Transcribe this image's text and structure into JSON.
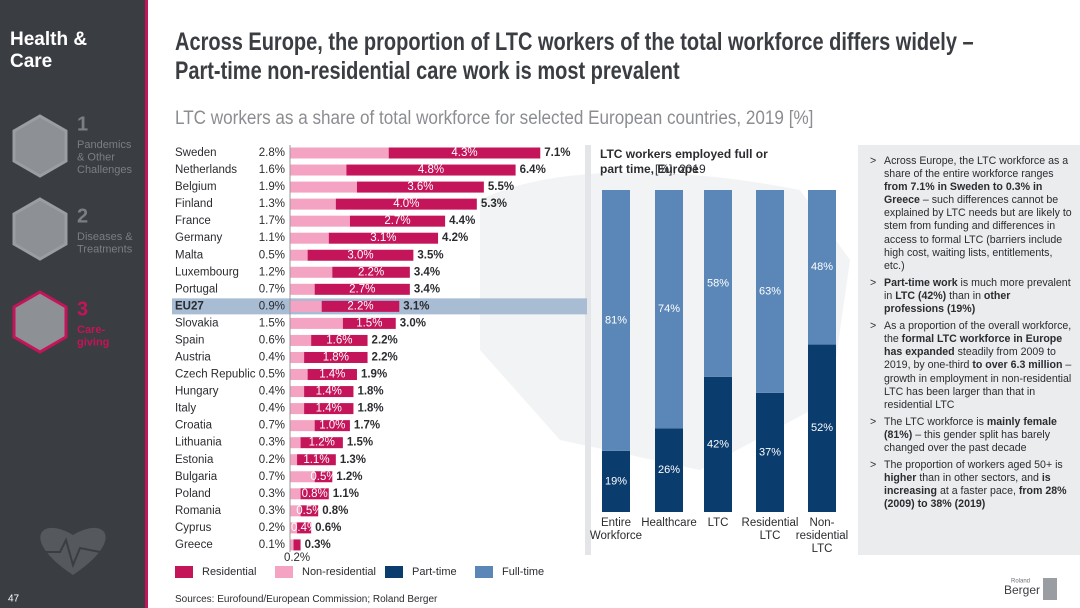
{
  "sidebar": {
    "title": "Health & Care",
    "items": [
      {
        "number": "1",
        "label": [
          "Pandemics",
          "& Other",
          "Challenges"
        ]
      },
      {
        "number": "2",
        "label": [
          "Diseases &",
          "Treatments"
        ]
      },
      {
        "number": "3",
        "label": [
          "Care-",
          "giving"
        ]
      }
    ],
    "page_number": "47"
  },
  "header": {
    "title": "Across Europe, the proportion of LTC workers of the total workforce differs widely – Part-time non-residential care work is most prevalent",
    "subtitle": "LTC workers as a share of total workforce for selected European countries, 2019 [%]"
  },
  "chart_data": [
    {
      "type": "hbar",
      "stacked": true,
      "highlight_category": "EU27",
      "categories": [
        "Sweden",
        "Netherlands",
        "Belgium",
        "Finland",
        "France",
        "Germany",
        "Malta",
        "Luxembourg",
        "Portugal",
        "EU27",
        "Slovakia",
        "Spain",
        "Austria",
        "Czech Republic",
        "Hungary",
        "Italy",
        "Croatia",
        "Lithuania",
        "Estonia",
        "Bulgaria",
        "Poland",
        "Romania",
        "Cyprus",
        "Greece"
      ],
      "series": [
        {
          "name": "Non-residential",
          "color": "#f4a3c2",
          "values": [
            2.8,
            1.6,
            1.9,
            1.3,
            1.7,
            1.1,
            0.5,
            1.2,
            0.7,
            0.9,
            1.5,
            0.6,
            0.4,
            0.5,
            0.4,
            0.4,
            0.7,
            0.3,
            0.2,
            0.7,
            0.3,
            0.3,
            0.2,
            0.1
          ],
          "value_labels": [
            "2.8%",
            "1.6%",
            "1.9%",
            "1.3%",
            "1.7%",
            "1.1%",
            "0.5%",
            "1.2%",
            "0.7%",
            "0.9%",
            "1.5%",
            "0.6%",
            "0.4%",
            "0.5%",
            "0.4%",
            "0.4%",
            "0.7%",
            "0.3%",
            "0.2%",
            "0.7%",
            "0.3%",
            "0.3%",
            "0.2%",
            "0.1%"
          ]
        },
        {
          "name": "Residential",
          "color": "#c4145a",
          "values": [
            4.3,
            4.8,
            3.6,
            4.0,
            2.7,
            3.1,
            3.0,
            2.2,
            2.7,
            2.2,
            1.5,
            1.6,
            1.8,
            1.4,
            1.4,
            1.4,
            1.0,
            1.2,
            1.1,
            0.5,
            0.8,
            0.5,
            0.4,
            0.2
          ],
          "value_labels": [
            "4.3%",
            "4.8%",
            "3.6%",
            "4.0%",
            "2.7%",
            "3.1%",
            "3.0%",
            "2.2%",
            "2.7%",
            "2.2%",
            "1.5%",
            "1.6%",
            "1.8%",
            "1.4%",
            "1.4%",
            "1.4%",
            "1.0%",
            "1.2%",
            "1.1%",
            "0.5%",
            "0.8%",
            "0.5%",
            "0.4%",
            "0.2%"
          ]
        }
      ],
      "totals": [
        7.1,
        6.4,
        5.5,
        5.3,
        4.4,
        4.2,
        3.5,
        3.4,
        3.4,
        3.1,
        3.0,
        2.2,
        2.2,
        1.9,
        1.8,
        1.8,
        1.7,
        1.5,
        1.3,
        1.2,
        1.1,
        0.8,
        0.6,
        0.3
      ],
      "total_labels": [
        "7.1%",
        "6.4%",
        "5.5%",
        "5.3%",
        "4.4%",
        "4.2%",
        "3.5%",
        "3.4%",
        "3.4%",
        "3.1%",
        "3.0%",
        "2.2%",
        "2.2%",
        "1.9%",
        "1.8%",
        "1.8%",
        "1.7%",
        "1.5%",
        "1.3%",
        "1.2%",
        "1.1%",
        "0.8%",
        "0.6%",
        "0.3%"
      ],
      "xlim": [
        0,
        8
      ]
    },
    {
      "type": "vbar",
      "stacked": true,
      "title": "LTC workers employed full or part time, Europe",
      "title_suffix": "[%], 2019",
      "categories": [
        [
          "Entire",
          "Workforce"
        ],
        [
          "Healthcare"
        ],
        [
          "LTC"
        ],
        [
          "Residential",
          "LTC"
        ],
        [
          "Non-",
          "residential",
          "LTC"
        ]
      ],
      "series": [
        {
          "name": "Part-time",
          "color": "#0b3c6e",
          "values": [
            19,
            26,
            42,
            37,
            52
          ],
          "value_labels": [
            "19%",
            "26%",
            "42%",
            "37%",
            "52%"
          ]
        },
        {
          "name": "Full-time",
          "color": "#5b87b8",
          "values": [
            81,
            74,
            58,
            63,
            48
          ],
          "value_labels": [
            "81%",
            "74%",
            "58%",
            "63%",
            "48%"
          ]
        }
      ],
      "ylim": [
        0,
        100
      ]
    }
  ],
  "panel": {
    "bullets": [
      [
        {
          "text": "Across Europe, the LTC workforce as a share of the entire workforce ranges ",
          "bold": false
        },
        {
          "text": "from 7.1% in Sweden to 0.3% in Greece",
          "bold": true
        },
        {
          "text": " – such differences cannot be explained by LTC needs but are likely to stem from funding and differences in access to formal LTC (barriers include high cost, waiting lists, entitlements, etc.)",
          "bold": false
        }
      ],
      [
        {
          "text": "Part-time work",
          "bold": true
        },
        {
          "text": " is much more prevalent in ",
          "bold": false
        },
        {
          "text": "LTC (42%)",
          "bold": true
        },
        {
          "text": " than in ",
          "bold": false
        },
        {
          "text": "other professions (19%)",
          "bold": true
        }
      ],
      [
        {
          "text": "As a proportion of the overall workforce, the ",
          "bold": false
        },
        {
          "text": "formal LTC workforce in Europe has expanded",
          "bold": true
        },
        {
          "text": " steadily from 2009 to 2019, by one-third ",
          "bold": false
        },
        {
          "text": "to over 6.3 million",
          "bold": true
        },
        {
          "text": " – growth in employment in non-residential LTC has been larger than that in residential LTC",
          "bold": false
        }
      ],
      [
        {
          "text": "The LTC workforce is ",
          "bold": false
        },
        {
          "text": "mainly female (81%)",
          "bold": true
        },
        {
          "text": " – this gender split has barely changed over the past decade",
          "bold": false
        }
      ],
      [
        {
          "text": "The proportion of workers aged 50+ is ",
          "bold": false
        },
        {
          "text": "higher",
          "bold": true
        },
        {
          "text": " than in other sectors, and ",
          "bold": false
        },
        {
          "text": "is increasing",
          "bold": true
        },
        {
          "text": " at a faster pace, ",
          "bold": false
        },
        {
          "text": "from 28% (2009) to 38% (2019)",
          "bold": true
        }
      ]
    ]
  },
  "footer": {
    "source": "Sources: Eurofound/European Commission; Roland Berger",
    "logo_top": "Roland",
    "logo_bottom": "Berger"
  }
}
